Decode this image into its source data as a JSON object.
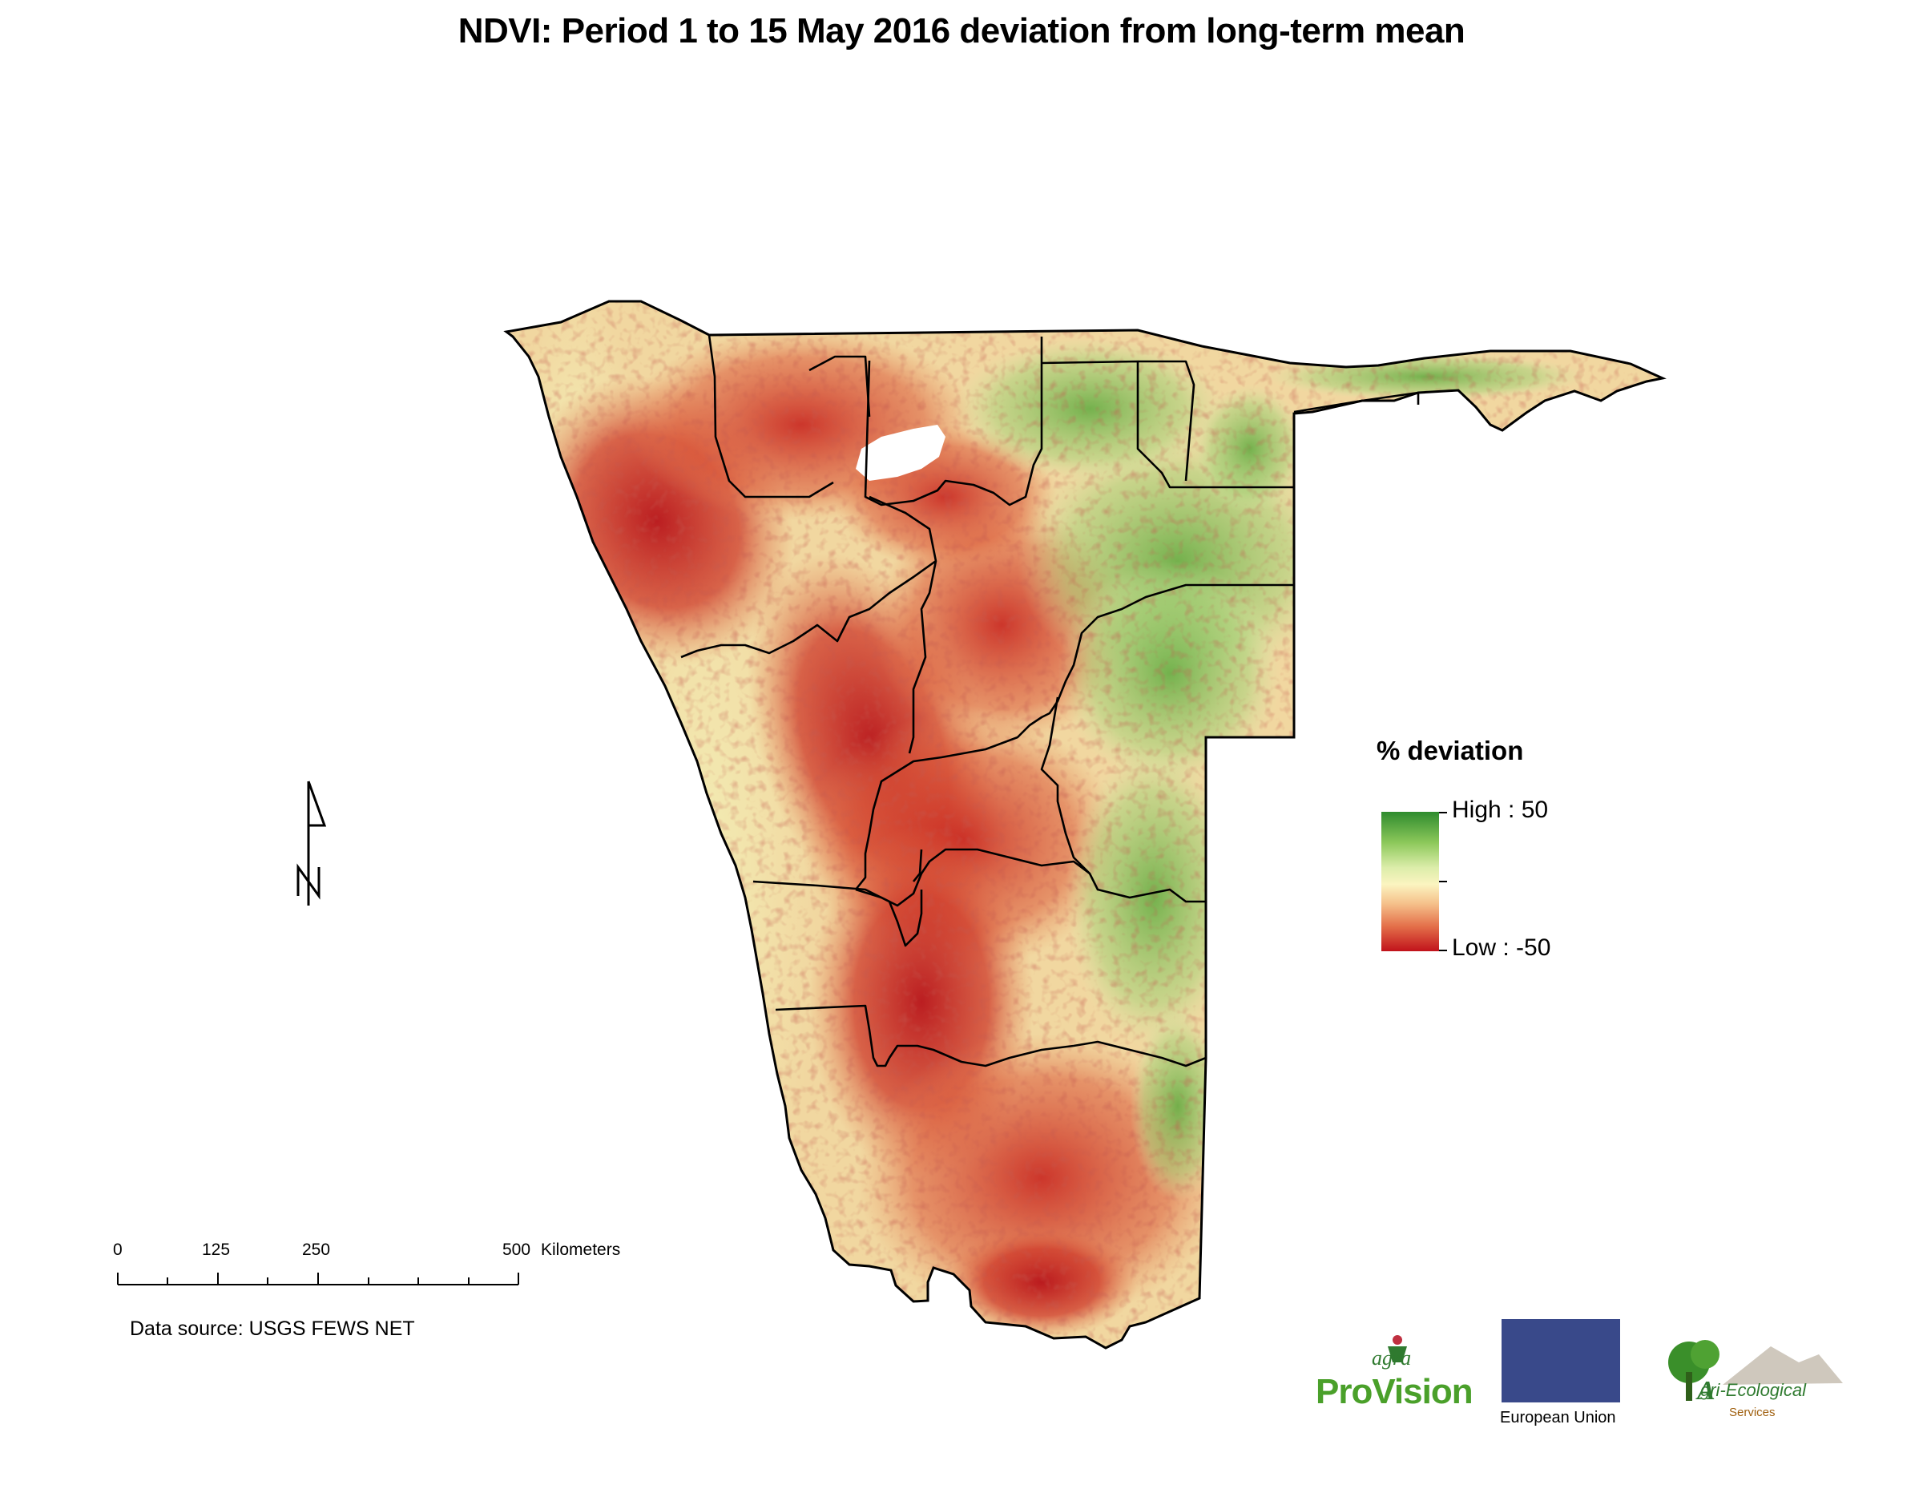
{
  "title": "NDVI: Period 1 to 15 May 2016 deviation from long-term mean",
  "legend": {
    "title": "% deviation",
    "high_label": "High : 50",
    "low_label": "Low : -50",
    "high_value": 50,
    "low_value": -50,
    "colors": {
      "high": "#2e8b2e",
      "mid": "#fbf4c0",
      "low": "#c1121b"
    }
  },
  "scale_bar": {
    "ticks": [
      "0",
      "125",
      "250",
      "500"
    ],
    "unit": "Kilometers"
  },
  "north_arrow": {
    "letter": "N",
    "icon": "north-arrow-icon"
  },
  "source": "Data source: USGS FEWS NET",
  "logos": {
    "agra_small": "agra",
    "agra_big": "ProVision",
    "eu_label": "European Union",
    "aes_main": "gri-Ecological",
    "aes_letter": "A",
    "aes_sub": "Services"
  }
}
